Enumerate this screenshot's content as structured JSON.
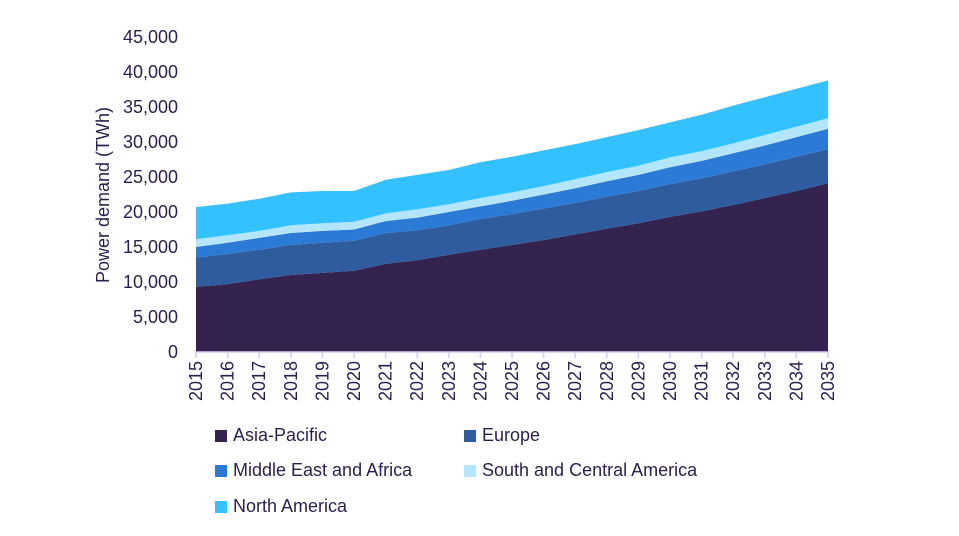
{
  "chart_data": {
    "type": "area",
    "stacked": true,
    "title": "",
    "xlabel": "",
    "ylabel": "Power demand (TWh)",
    "ylim": [
      0,
      45000
    ],
    "yticks": [
      "0",
      "5,000",
      "10,000",
      "15,000",
      "20,000",
      "25,000",
      "30,000",
      "35,000",
      "40,000",
      "45,000"
    ],
    "ytick_values": [
      0,
      5000,
      10000,
      15000,
      20000,
      25000,
      30000,
      35000,
      40000,
      45000
    ],
    "grid": false,
    "legend_placement": "bottom",
    "x": [
      "2015",
      "2016",
      "2017",
      "2018",
      "2019",
      "2020",
      "2021",
      "2022",
      "2023",
      "2024",
      "2025",
      "2026",
      "2027",
      "2028",
      "2029",
      "2030",
      "2031",
      "2032",
      "2033",
      "2034",
      "2035"
    ],
    "series": [
      {
        "name": "Asia-Pacific",
        "color": "#35234F",
        "values": [
          9300,
          9700,
          10400,
          11000,
          11300,
          11600,
          12600,
          13100,
          13900,
          14600,
          15300,
          16000,
          16800,
          17600,
          18400,
          19300,
          20100,
          21000,
          22000,
          23000,
          24100
        ]
      },
      {
        "name": "Europe",
        "color": "#2E5C9E",
        "values": [
          4200,
          4300,
          4200,
          4300,
          4300,
          4300,
          4400,
          4300,
          4200,
          4400,
          4400,
          4500,
          4500,
          4600,
          4600,
          4700,
          4700,
          4800,
          4800,
          4900,
          4900
        ]
      },
      {
        "name": "Middle East and Africa",
        "color": "#2B7BD6",
        "values": [
          1500,
          1600,
          1700,
          1700,
          1700,
          1600,
          1700,
          1800,
          1900,
          1800,
          1900,
          2000,
          2100,
          2200,
          2300,
          2400,
          2500,
          2600,
          2700,
          2800,
          2900
        ]
      },
      {
        "name": "South and Central America",
        "color": "#B3E5FC",
        "values": [
          1100,
          1100,
          1000,
          1100,
          1100,
          1100,
          1100,
          1200,
          1100,
          1200,
          1200,
          1200,
          1300,
          1300,
          1300,
          1400,
          1400,
          1400,
          1500,
          1500,
          1500
        ]
      },
      {
        "name": "North America",
        "color": "#33C1FF",
        "values": [
          4600,
          4500,
          4600,
          4700,
          4600,
          4400,
          4800,
          4900,
          4900,
          5100,
          5100,
          5100,
          5000,
          5000,
          5100,
          5000,
          5200,
          5400,
          5400,
          5400,
          5400
        ]
      }
    ]
  }
}
